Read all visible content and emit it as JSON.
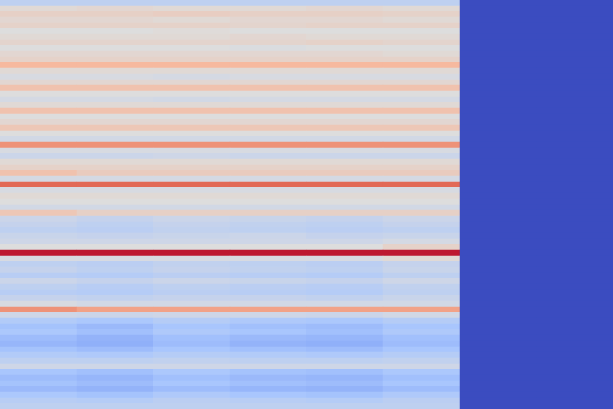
{
  "chart_data": {
    "type": "heatmap",
    "tick_labels": false,
    "color_range": [
      0,
      1
    ],
    "cells": [
      [
        0.4,
        0.4,
        0.4,
        0.4,
        0.4,
        0.4,
        0,
        0
      ],
      [
        0.52,
        0.53,
        0.52,
        0.52,
        0.53,
        0.52,
        0,
        0
      ],
      [
        0.56,
        0.56,
        0.57,
        0.56,
        0.56,
        0.55,
        0,
        0
      ],
      [
        0.53,
        0.53,
        0.52,
        0.53,
        0.53,
        0.52,
        0,
        0
      ],
      [
        0.55,
        0.55,
        0.55,
        0.54,
        0.55,
        0.55,
        0,
        0
      ],
      [
        0.5,
        0.5,
        0.51,
        0.5,
        0.5,
        0.5,
        0,
        0
      ],
      [
        0.52,
        0.52,
        0.52,
        0.53,
        0.52,
        0.52,
        0,
        0
      ],
      [
        0.54,
        0.54,
        0.54,
        0.54,
        0.55,
        0.54,
        0,
        0
      ],
      [
        0.5,
        0.5,
        0.5,
        0.49,
        0.5,
        0.5,
        0,
        0
      ],
      [
        0.53,
        0.53,
        0.53,
        0.53,
        0.53,
        0.52,
        0,
        0
      ],
      [
        0.55,
        0.55,
        0.55,
        0.55,
        0.55,
        0.55,
        0,
        0
      ],
      [
        0.66,
        0.66,
        0.66,
        0.66,
        0.66,
        0.66,
        0,
        0
      ],
      [
        0.52,
        0.52,
        0.52,
        0.52,
        0.52,
        0.52,
        0,
        0
      ],
      [
        0.48,
        0.48,
        0.47,
        0.48,
        0.48,
        0.48,
        0,
        0
      ],
      [
        0.53,
        0.53,
        0.53,
        0.53,
        0.53,
        0.53,
        0,
        0
      ],
      [
        0.62,
        0.62,
        0.62,
        0.62,
        0.62,
        0.62,
        0,
        0
      ],
      [
        0.5,
        0.5,
        0.5,
        0.5,
        0.5,
        0.5,
        0,
        0
      ],
      [
        0.47,
        0.47,
        0.46,
        0.47,
        0.47,
        0.47,
        0,
        0
      ],
      [
        0.52,
        0.52,
        0.52,
        0.52,
        0.52,
        0.52,
        0,
        0
      ],
      [
        0.62,
        0.62,
        0.62,
        0.62,
        0.62,
        0.62,
        0,
        0
      ],
      [
        0.5,
        0.5,
        0.5,
        0.5,
        0.5,
        0.5,
        0,
        0
      ],
      [
        0.53,
        0.53,
        0.53,
        0.53,
        0.53,
        0.53,
        0,
        0
      ],
      [
        0.6,
        0.6,
        0.6,
        0.6,
        0.6,
        0.6,
        0,
        0
      ],
      [
        0.5,
        0.5,
        0.5,
        0.5,
        0.5,
        0.5,
        0,
        0
      ],
      [
        0.46,
        0.46,
        0.46,
        0.46,
        0.46,
        0.46,
        0,
        0
      ],
      [
        0.76,
        0.76,
        0.76,
        0.76,
        0.76,
        0.76,
        0,
        0
      ],
      [
        0.48,
        0.48,
        0.48,
        0.48,
        0.48,
        0.48,
        0,
        0
      ],
      [
        0.44,
        0.44,
        0.45,
        0.44,
        0.44,
        0.44,
        0,
        0
      ],
      [
        0.52,
        0.52,
        0.52,
        0.52,
        0.52,
        0.52,
        0,
        0
      ],
      [
        0.55,
        0.55,
        0.55,
        0.55,
        0.55,
        0.55,
        0,
        0
      ],
      [
        0.62,
        0.58,
        0.58,
        0.58,
        0.58,
        0.58,
        0,
        0
      ],
      [
        0.47,
        0.47,
        0.47,
        0.47,
        0.47,
        0.47,
        0,
        0
      ],
      [
        0.85,
        0.85,
        0.85,
        0.85,
        0.85,
        0.85,
        0,
        0
      ],
      [
        0.48,
        0.48,
        0.48,
        0.48,
        0.48,
        0.48,
        0,
        0
      ],
      [
        0.52,
        0.52,
        0.52,
        0.52,
        0.52,
        0.52,
        0,
        0
      ],
      [
        0.5,
        0.5,
        0.5,
        0.5,
        0.5,
        0.5,
        0,
        0
      ],
      [
        0.46,
        0.46,
        0.46,
        0.46,
        0.46,
        0.46,
        0,
        0
      ],
      [
        0.6,
        0.56,
        0.56,
        0.56,
        0.56,
        0.56,
        0,
        0
      ],
      [
        0.44,
        0.42,
        0.44,
        0.43,
        0.42,
        0.44,
        0,
        0
      ],
      [
        0.42,
        0.4,
        0.42,
        0.41,
        0.4,
        0.42,
        0,
        0
      ],
      [
        0.4,
        0.39,
        0.41,
        0.4,
        0.39,
        0.4,
        0,
        0
      ],
      [
        0.43,
        0.42,
        0.43,
        0.44,
        0.42,
        0.43,
        0,
        0
      ],
      [
        0.45,
        0.45,
        0.45,
        0.45,
        0.45,
        0.47,
        0,
        0
      ],
      [
        0.5,
        0.5,
        0.5,
        0.5,
        0.5,
        0.55,
        0,
        0
      ],
      [
        0.97,
        0.97,
        0.97,
        0.97,
        0.97,
        0.97,
        0,
        0
      ],
      [
        0.48,
        0.48,
        0.48,
        0.48,
        0.48,
        0.52,
        0,
        0
      ],
      [
        0.4,
        0.39,
        0.41,
        0.4,
        0.39,
        0.42,
        0,
        0
      ],
      [
        0.42,
        0.4,
        0.42,
        0.41,
        0.4,
        0.43,
        0,
        0
      ],
      [
        0.38,
        0.37,
        0.39,
        0.38,
        0.37,
        0.4,
        0,
        0
      ],
      [
        0.44,
        0.42,
        0.44,
        0.43,
        0.42,
        0.45,
        0,
        0
      ],
      [
        0.4,
        0.38,
        0.4,
        0.39,
        0.38,
        0.41,
        0,
        0
      ],
      [
        0.38,
        0.37,
        0.39,
        0.38,
        0.37,
        0.4,
        0,
        0
      ],
      [
        0.42,
        0.41,
        0.42,
        0.42,
        0.41,
        0.43,
        0,
        0
      ],
      [
        0.48,
        0.46,
        0.46,
        0.46,
        0.46,
        0.46,
        0,
        0
      ],
      [
        0.76,
        0.72,
        0.72,
        0.72,
        0.72,
        0.72,
        0,
        0
      ],
      [
        0.45,
        0.44,
        0.45,
        0.45,
        0.44,
        0.46,
        0,
        0
      ],
      [
        0.36,
        0.34,
        0.37,
        0.35,
        0.34,
        0.37,
        0,
        0
      ],
      [
        0.32,
        0.29,
        0.33,
        0.31,
        0.3,
        0.33,
        0,
        0
      ],
      [
        0.34,
        0.31,
        0.35,
        0.33,
        0.31,
        0.35,
        0,
        0
      ],
      [
        0.3,
        0.27,
        0.31,
        0.29,
        0.28,
        0.31,
        0,
        0
      ],
      [
        0.28,
        0.26,
        0.3,
        0.27,
        0.26,
        0.3,
        0,
        0
      ],
      [
        0.32,
        0.3,
        0.33,
        0.31,
        0.3,
        0.33,
        0,
        0
      ],
      [
        0.36,
        0.35,
        0.37,
        0.36,
        0.35,
        0.37,
        0,
        0
      ],
      [
        0.4,
        0.4,
        0.41,
        0.4,
        0.4,
        0.41,
        0,
        0
      ],
      [
        0.45,
        0.45,
        0.45,
        0.45,
        0.45,
        0.45,
        0,
        0
      ],
      [
        0.33,
        0.31,
        0.34,
        0.32,
        0.31,
        0.34,
        0,
        0
      ],
      [
        0.3,
        0.28,
        0.31,
        0.29,
        0.28,
        0.31,
        0,
        0
      ],
      [
        0.32,
        0.3,
        0.33,
        0.31,
        0.3,
        0.33,
        0,
        0
      ],
      [
        0.29,
        0.27,
        0.3,
        0.28,
        0.27,
        0.3,
        0,
        0
      ],
      [
        0.34,
        0.32,
        0.35,
        0.33,
        0.32,
        0.35,
        0,
        0
      ],
      [
        0.38,
        0.37,
        0.39,
        0.38,
        0.37,
        0.39,
        0,
        0
      ],
      [
        0.4,
        0.4,
        0.4,
        0.4,
        0.4,
        0.4,
        0,
        0
      ]
    ]
  }
}
